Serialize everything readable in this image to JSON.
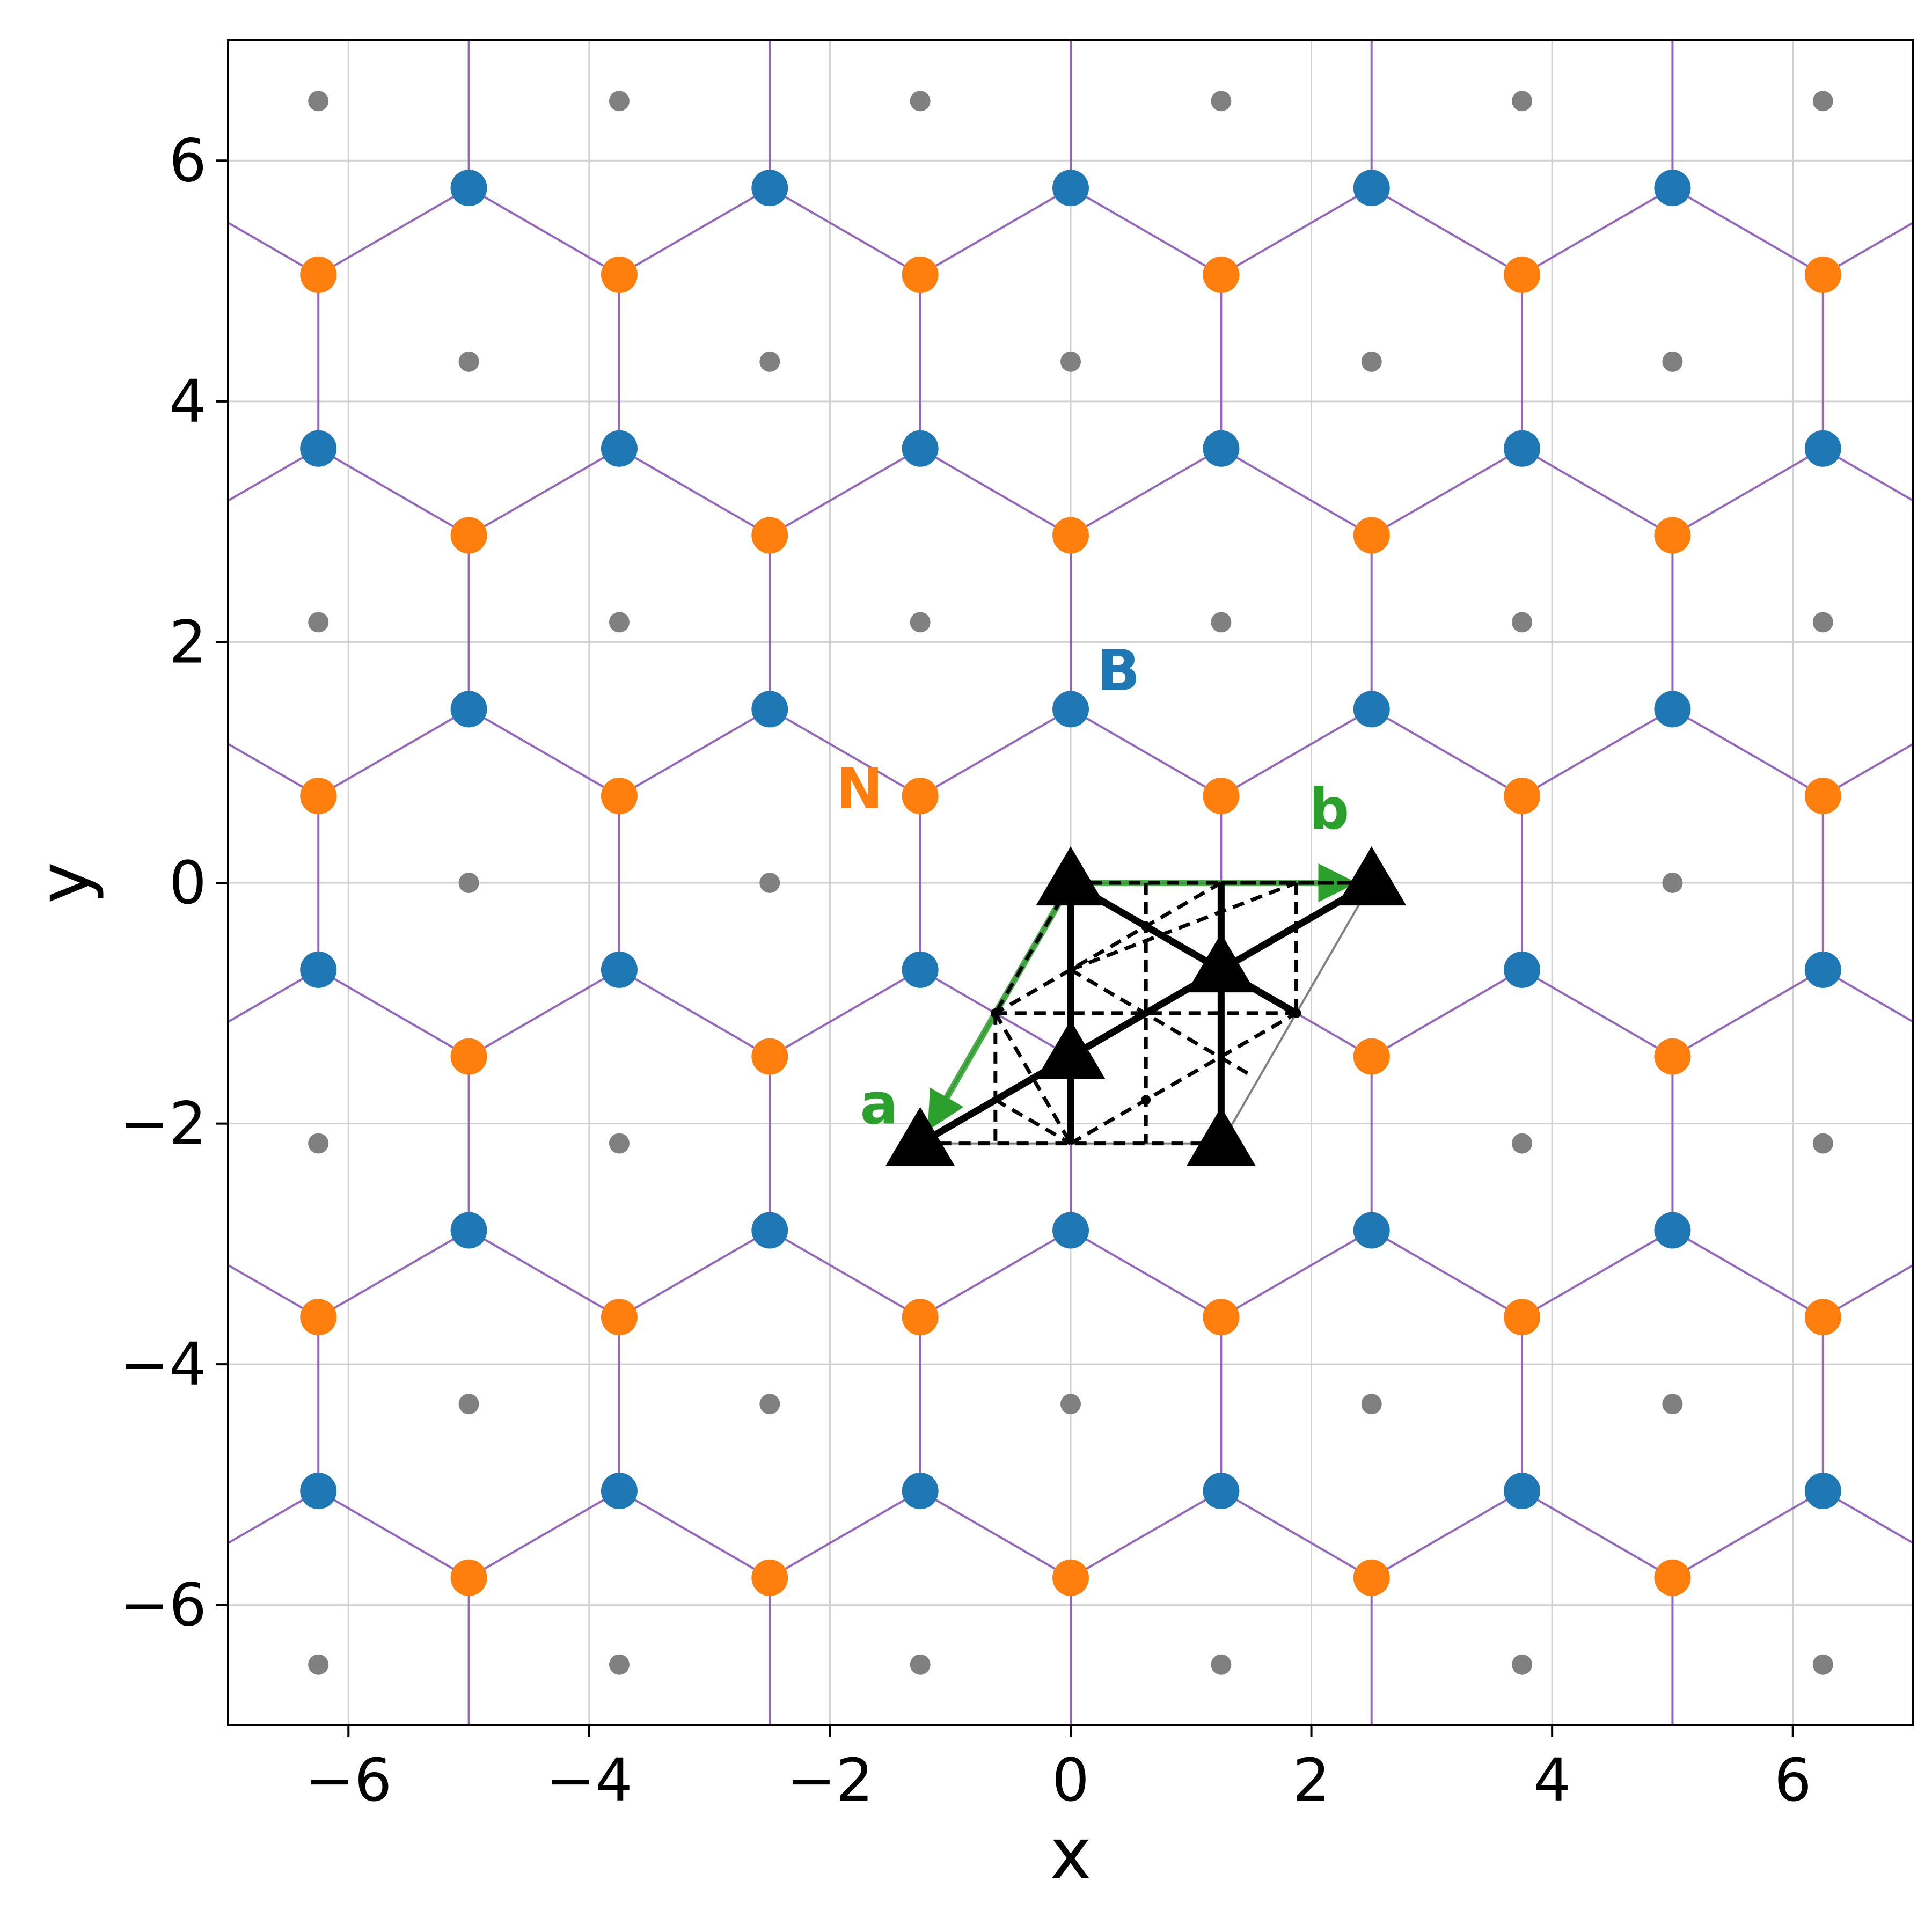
{
  "chart_data": {
    "type": "scatter",
    "title": "",
    "xlabel": "x",
    "ylabel": "y",
    "xlim": [
      -7,
      7
    ],
    "ylim": [
      -7,
      7
    ],
    "grid": true,
    "xticks": [
      -6,
      -4,
      -2,
      0,
      2,
      4,
      6
    ],
    "yticks": [
      -6,
      -4,
      -2,
      0,
      2,
      4,
      6
    ],
    "xtick_labels": [
      "−6",
      "−4",
      "−2",
      "0",
      "2",
      "4",
      "6"
    ],
    "ytick_labels": [
      "−6",
      "−4",
      "−2",
      "0",
      "2",
      "4",
      "6"
    ],
    "lattice": {
      "a_vector": [
        -1.25,
        -2.165
      ],
      "b_vector": [
        2.5,
        0
      ],
      "boron_offset": [
        0,
        1.443
      ],
      "nitrogen_offset": [
        -1.25,
        0.722
      ],
      "hex_center_offset": [
        0,
        0
      ],
      "index_range": [
        -6,
        6
      ]
    },
    "series": [
      {
        "label_key": "boron",
        "marker": "circle",
        "color": "#1f77b4"
      },
      {
        "label_key": "nitrogen",
        "marker": "circle",
        "color": "#ff7f0e"
      },
      {
        "label_key": "centers",
        "marker": "small-circle",
        "color": "#808080"
      }
    ],
    "bond_color": "#9467bd",
    "cell_outline_color": "#808080",
    "vector_color": "#2ca02c",
    "annotations": [
      {
        "text": "B",
        "x": 0.22,
        "y": 1.6,
        "color": "#1f77b4"
      },
      {
        "text": "N",
        "x": -1.95,
        "y": 0.62,
        "color": "#ff7f0e"
      },
      {
        "text": "a",
        "x": -1.75,
        "y": -2.0,
        "color": "#2ca02c"
      },
      {
        "text": "b",
        "x": 1.98,
        "y": 0.45,
        "color": "#2ca02c"
      }
    ],
    "symmetry_triangles": [
      [
        0,
        0
      ],
      [
        2.5,
        0
      ],
      [
        -1.25,
        -2.165
      ],
      [
        1.25,
        -2.165
      ],
      [
        1.25,
        -0.722
      ],
      [
        0,
        -1.443
      ]
    ],
    "threefold_axes": [
      [
        0.625,
        -0.361
      ],
      [
        1.875,
        -1.083
      ],
      [
        -0.625,
        -1.083
      ],
      [
        0.625,
        -1.804
      ]
    ],
    "mirror_lines": [
      [
        [
          0,
          0
        ],
        [
          2.5,
          0
        ]
      ],
      [
        [
          0.625,
          0
        ],
        [
          0.625,
          -2.165
        ]
      ],
      [
        [
          1.875,
          0
        ],
        [
          1.875,
          -1.083
        ]
      ],
      [
        [
          -0.625,
          -1.083
        ],
        [
          -0.625,
          -2.165
        ]
      ],
      [
        [
          -1.25,
          -2.165
        ],
        [
          1.25,
          -2.165
        ]
      ]
    ],
    "glide_lines": [
      [
        [
          0,
          0
        ],
        [
          -0.625,
          -1.083
        ]
      ],
      [
        [
          1.25,
          0
        ],
        [
          -0.625,
          -1.083
        ]
      ],
      [
        [
          1.25,
          0
        ],
        [
          2.5,
          0
        ]
      ],
      [
        [
          0,
          -0.722
        ],
        [
          1.875,
          0
        ]
      ],
      [
        [
          0,
          -0.722
        ],
        [
          1.5,
          -1.6
        ]
      ],
      [
        [
          -0.625,
          -1.083
        ],
        [
          1.875,
          -1.083
        ]
      ],
      [
        [
          -0.625,
          -1.083
        ],
        [
          0,
          -2.165
        ]
      ],
      [
        [
          0,
          -2.165
        ],
        [
          1.875,
          -1.083
        ]
      ],
      [
        [
          -0.625,
          -1.804
        ],
        [
          0,
          -2.165
        ]
      ]
    ],
    "twofold_axes": [
      [
        [
          0,
          0
        ],
        [
          0,
          -2.165
        ]
      ],
      [
        [
          1.25,
          0
        ],
        [
          1.25,
          -2.165
        ]
      ]
    ],
    "solid_glide_lines": [
      [
        [
          0,
          0
        ],
        [
          1.875,
          -1.083
        ]
      ],
      [
        [
          -1.25,
          -2.165
        ],
        [
          2.5,
          0
        ]
      ]
    ]
  }
}
